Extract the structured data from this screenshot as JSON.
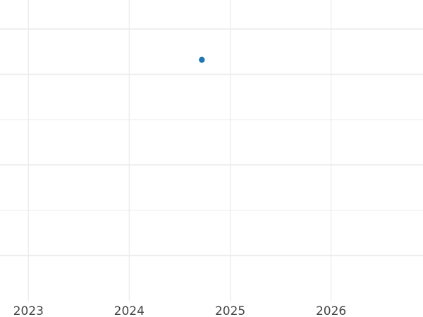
{
  "chart_data": {
    "type": "scatter",
    "title": "",
    "xlabel": "",
    "ylabel": "",
    "x_ticks": [
      "2023",
      "2024",
      "2025",
      "2026"
    ],
    "xlim": [
      "2022-09-20",
      "2026-11-30"
    ],
    "ylim": [
      -0.5,
      2.82
    ],
    "y_major_gridlines": [
      0,
      1,
      2,
      2.5
    ],
    "y_minor_gridlines": [
      0.5,
      1.5
    ],
    "y_tick_labels_shown": false,
    "grid": true,
    "legend": "none",
    "series": [
      {
        "color": "#1f77b4",
        "points": [
          {
            "x": "2024-09-20",
            "y": 2.16
          }
        ]
      }
    ]
  }
}
